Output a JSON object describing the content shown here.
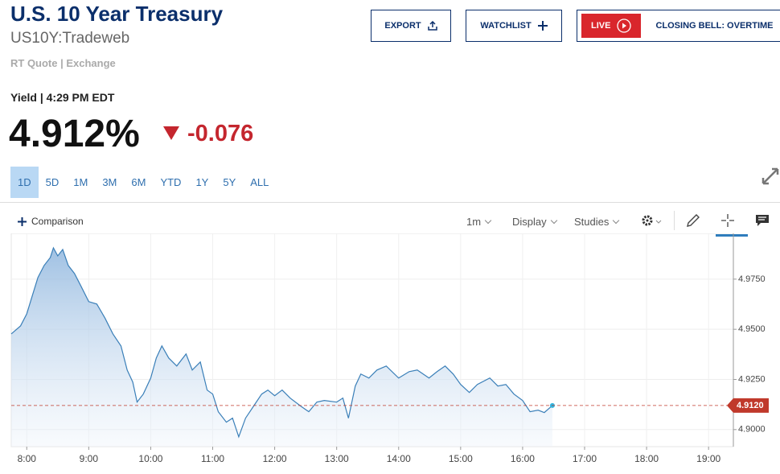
{
  "header": {
    "title": "U.S. 10 Year Treasury",
    "symbol": "US10Y:Tradeweb",
    "source": "RT Quote | Exchange"
  },
  "buttons": {
    "export": "EXPORT",
    "watchlist": "WATCHLIST",
    "live": "LIVE",
    "show": "CLOSING BELL: OVERTIME"
  },
  "quote": {
    "label": "Yield | 4:29 PM EDT",
    "price": "4.912%",
    "change": "-0.076"
  },
  "ranges": {
    "items": [
      "1D",
      "5D",
      "1M",
      "3M",
      "6M",
      "YTD",
      "1Y",
      "5Y",
      "ALL"
    ],
    "active": 0
  },
  "toolbar": {
    "comparison": "Comparison",
    "interval": "1m",
    "display": "Display",
    "studies": "Studies"
  },
  "chart_data": {
    "type": "area",
    "color": "#3a7fb8",
    "x": [
      7.75,
      7.9,
      8.0,
      8.08,
      8.18,
      8.28,
      8.38,
      8.43,
      8.5,
      8.58,
      8.67,
      8.77,
      8.87,
      9.0,
      9.13,
      9.26,
      9.39,
      9.52,
      9.62,
      9.71,
      9.78,
      9.88,
      10.0,
      10.09,
      10.18,
      10.29,
      10.42,
      10.57,
      10.67,
      10.8,
      10.91,
      11.0,
      11.09,
      11.22,
      11.32,
      11.42,
      11.53,
      11.66,
      11.79,
      11.89,
      12.0,
      12.12,
      12.25,
      12.42,
      12.55,
      12.68,
      12.8,
      13.0,
      13.1,
      13.19,
      13.3,
      13.39,
      13.52,
      13.65,
      13.8,
      14.0,
      14.17,
      14.3,
      14.49,
      14.62,
      14.75,
      14.88,
      15.0,
      15.14,
      15.27,
      15.47,
      15.6,
      15.73,
      15.86,
      16.0,
      16.12,
      16.25,
      16.35,
      16.48
    ],
    "values": [
      4.9477,
      4.9517,
      4.9577,
      4.9658,
      4.9758,
      4.9818,
      4.9858,
      4.9906,
      4.9866,
      4.9898,
      4.9818,
      4.9778,
      4.9718,
      4.9638,
      4.9626,
      4.9557,
      4.9477,
      4.9417,
      4.9297,
      4.9237,
      4.9137,
      4.9177,
      4.9257,
      4.9357,
      4.9417,
      4.9357,
      4.9317,
      4.9377,
      4.9297,
      4.9337,
      4.9197,
      4.9177,
      4.9089,
      4.9037,
      4.9057,
      4.8964,
      4.9057,
      4.9117,
      4.9177,
      4.9197,
      4.9169,
      4.9197,
      4.9157,
      4.9117,
      4.9089,
      4.9137,
      4.9145,
      4.9137,
      4.9157,
      4.9057,
      4.9217,
      4.9277,
      4.9257,
      4.9297,
      4.9317,
      4.9257,
      4.9289,
      4.9297,
      4.9257,
      4.9289,
      4.9317,
      4.9277,
      4.9225,
      4.9185,
      4.9225,
      4.9257,
      4.9217,
      4.9225,
      4.9177,
      4.9145,
      4.9089,
      4.9097,
      4.9085,
      4.912
    ],
    "xlim": [
      7.75,
      19.4
    ],
    "ylim": [
      4.8915,
      4.995
    ],
    "xticks": [
      {
        "value": 8,
        "label": "8:00"
      },
      {
        "value": 9,
        "label": "9:00"
      },
      {
        "value": 10,
        "label": "10:00"
      },
      {
        "value": 11,
        "label": "11:00"
      },
      {
        "value": 12,
        "label": "12:00"
      },
      {
        "value": 13,
        "label": "13:00"
      },
      {
        "value": 14,
        "label": "14:00"
      },
      {
        "value": 15,
        "label": "15:00"
      },
      {
        "value": 16,
        "label": "16:00"
      },
      {
        "value": 17,
        "label": "17:00"
      },
      {
        "value": 18,
        "label": "18:00"
      },
      {
        "value": 19,
        "label": "19:00"
      }
    ],
    "yticks": [
      {
        "value": 4.9,
        "label": "4.9000"
      },
      {
        "value": 4.925,
        "label": "4.9250"
      },
      {
        "value": 4.95,
        "label": "4.9500"
      },
      {
        "value": 4.975,
        "label": "4.9750"
      }
    ],
    "reference_line": {
      "value": 4.912,
      "label": "4.9120",
      "color": "#c0392b"
    },
    "grid": true
  }
}
